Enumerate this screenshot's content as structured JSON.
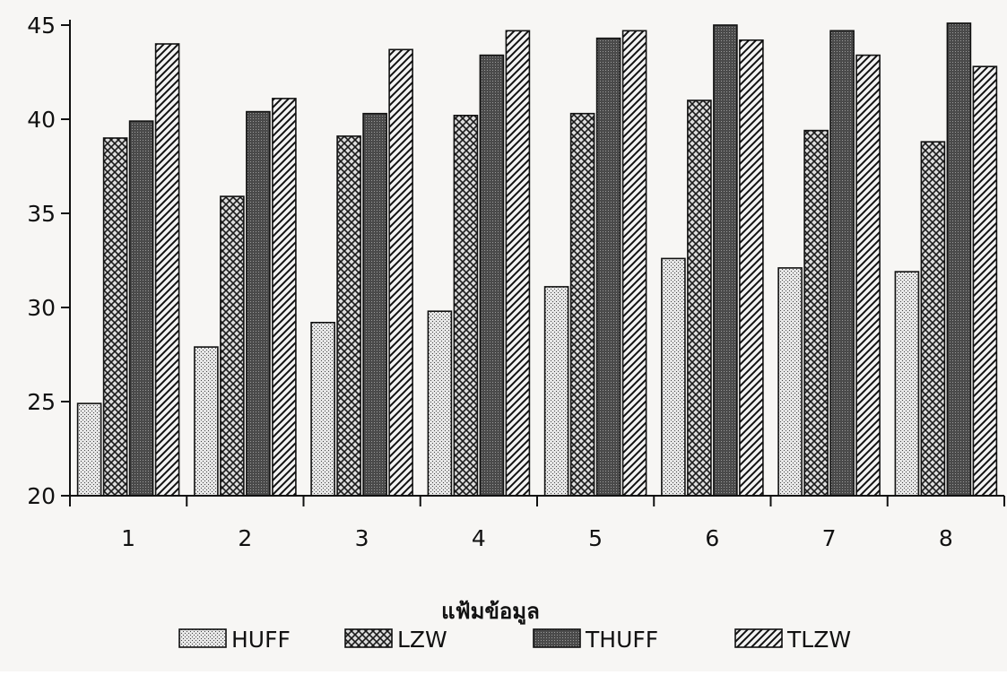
{
  "chart_data": {
    "type": "bar",
    "categories": [
      "1",
      "2",
      "3",
      "4",
      "5",
      "6",
      "7",
      "8"
    ],
    "series": [
      {
        "name": "HUFF",
        "values": [
          24.9,
          27.9,
          29.2,
          29.8,
          31.1,
          32.6,
          32.1,
          31.9
        ]
      },
      {
        "name": "LZW",
        "values": [
          39.0,
          35.9,
          39.1,
          40.2,
          40.3,
          41.0,
          39.4,
          38.8
        ]
      },
      {
        "name": "THUFF",
        "values": [
          39.9,
          40.4,
          40.3,
          43.4,
          44.3,
          45.0,
          44.7,
          45.1
        ]
      },
      {
        "name": "TLZW",
        "values": [
          44.0,
          41.1,
          43.7,
          44.7,
          44.7,
          44.2,
          43.4,
          42.8
        ]
      }
    ],
    "title": "",
    "xlabel": "แฟ้มข้อมูล",
    "ylabel": "",
    "ylim": [
      20,
      45
    ],
    "yticks": [
      "20",
      "25",
      "30",
      "35",
      "40",
      "45"
    ],
    "grid": false,
    "legend_position": "bottom"
  }
}
